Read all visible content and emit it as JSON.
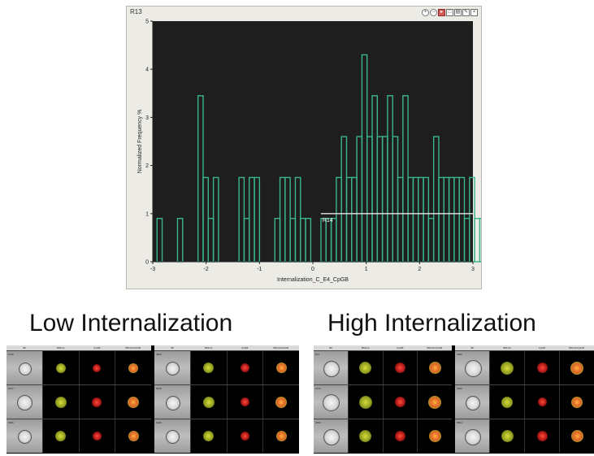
{
  "plot": {
    "title": "R13",
    "tools": [
      "zoom-in",
      "zoom-out",
      "select",
      "gate",
      "region",
      "edit",
      "close"
    ]
  },
  "chart_data": {
    "type": "histogram",
    "xlabel": "Internalization_C_E4_CpGB",
    "ylabel": "Normalized Frequency %",
    "xlim": [
      -3,
      3
    ],
    "ylim": [
      0,
      5
    ],
    "x_ticks": [
      -3,
      -2,
      -1,
      0,
      1,
      2,
      3
    ],
    "y_ticks": [
      0,
      1,
      2,
      3,
      4,
      5
    ],
    "x_tick_labels": [
      "-3",
      "-2",
      "-1",
      "0",
      "1",
      "2",
      "3"
    ],
    "y_tick_labels": [
      "0",
      "1",
      "2",
      "3",
      "4",
      "5"
    ],
    "series_color": "#3bb58a",
    "background": "#1e1e1e",
    "bin_start": -2.92,
    "bin_width": 0.096,
    "values": [
      0.9,
      0,
      0,
      0,
      0.9,
      0,
      0,
      0,
      3.45,
      1.75,
      0.9,
      1.75,
      0,
      0,
      0,
      0,
      1.75,
      0.9,
      1.75,
      1.75,
      0,
      0,
      0,
      0.9,
      1.75,
      1.75,
      0.9,
      1.75,
      0.9,
      0.9,
      0,
      0,
      0.9,
      0.9,
      0.9,
      1.75,
      2.6,
      1.75,
      1.75,
      2.6,
      4.3,
      2.6,
      3.45,
      2.6,
      2.6,
      3.45,
      2.6,
      1.75,
      3.45,
      1.75,
      1.75,
      1.75,
      1.75,
      0.9,
      2.6,
      1.75,
      1.75,
      1.75,
      1.75,
      1.75,
      0.9,
      1.75,
      0.9,
      0.9,
      1.75,
      1.75,
      1.75,
      0,
      1.75,
      0.9,
      0.9,
      0.9,
      1.75,
      1.75,
      0.9,
      0.9,
      0.9,
      0,
      0,
      0,
      0.9,
      0.9,
      1.75
    ],
    "region": {
      "label": "R14",
      "x_start": 0.15,
      "x_end": 3.0,
      "y": 1.0,
      "color": "#e6e6e6"
    }
  },
  "low_section": {
    "title": "Low Internalization",
    "columns": [
      "BF",
      "B51CA",
      "CpGB",
      "B51CA/CpGB"
    ],
    "left_ids": [
      "1018",
      "2017",
      "3006"
    ],
    "right_ids": [
      "4823",
      "5008",
      "6106"
    ]
  },
  "high_section": {
    "title": "High Internalization",
    "columns": [
      "BF",
      "B51CA",
      "CpGB",
      "B51CA/CpGB"
    ],
    "left_ids": [
      "871",
      "1570",
      "2950"
    ],
    "right_ids": [
      "3186",
      "4090",
      "5504"
    ]
  }
}
